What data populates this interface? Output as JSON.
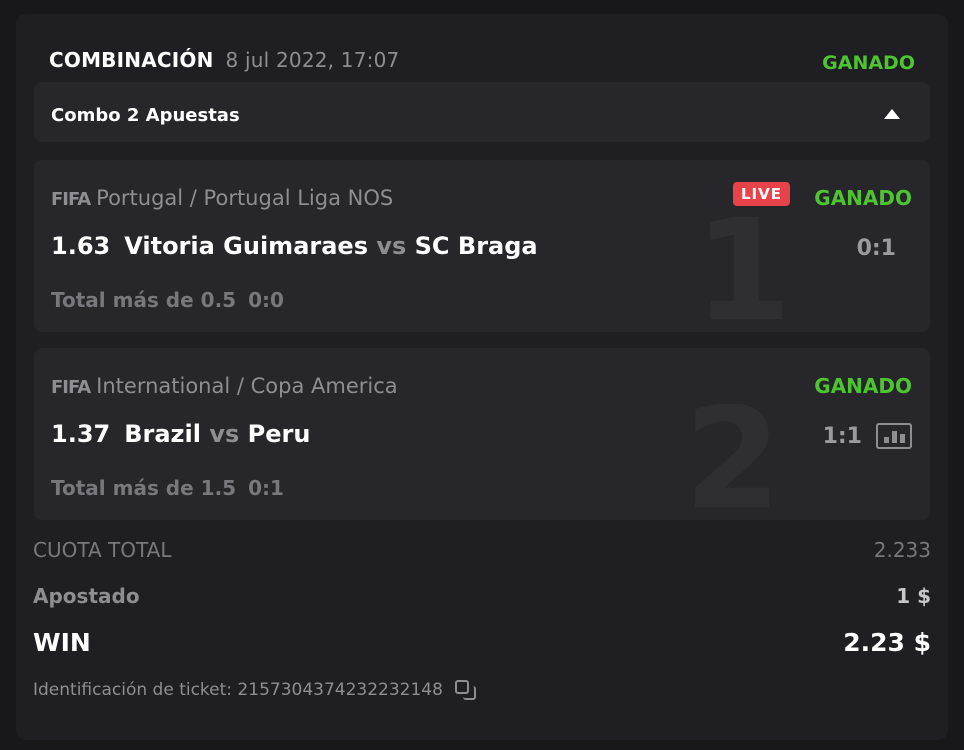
{
  "header": {
    "title": "COMBINACIÓN",
    "date": "8 jul 2022, 17:07",
    "status": "GANADO"
  },
  "combo": {
    "label": "Combo 2 Apuestas"
  },
  "events": [
    {
      "index": "1",
      "brand": "FIFA",
      "league": "Portugal / Portugal Liga NOS",
      "odd": "1.63",
      "home": "Vitoria Guimaraes",
      "vs": "vs",
      "away": "SC Braga",
      "market": "Total más de 0.5",
      "market_score": "0:0",
      "live": "LIVE",
      "status": "GANADO",
      "score": "0:1"
    },
    {
      "index": "2",
      "brand": "FIFA",
      "league": "International / Copa America",
      "odd": "1.37",
      "home": "Brazil",
      "vs": "vs",
      "away": "Peru",
      "market": "Total más de 1.5",
      "market_score": "0:1",
      "status": "GANADO",
      "score": "1:1"
    }
  ],
  "summary": {
    "total_odds_label": "CUOTA TOTAL",
    "total_odds": "2.233",
    "stake_label": "Apostado",
    "stake": "1 $",
    "win_label": "WIN",
    "win": "2.23 $"
  },
  "ticket": {
    "text": "Identificación de ticket: 2157304374232232148"
  },
  "colors": {
    "win": "#4cc531",
    "live": "#e8434a"
  }
}
